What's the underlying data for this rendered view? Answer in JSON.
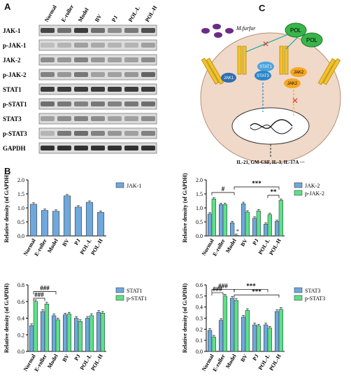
{
  "panels": {
    "a": "A",
    "b": "B",
    "c": "C"
  },
  "blot": {
    "lanes": [
      "Normal",
      "E-roller",
      "Model",
      "BV",
      "PJ",
      "POL-L",
      "POL-H"
    ],
    "rows": [
      "JAK-1",
      "p-JAK-1",
      "JAK-2",
      "p-JAK-2",
      "STAT1",
      "p-STAT1",
      "STAT3",
      "p-STAT3",
      "GAPDH"
    ]
  },
  "diagram": {
    "m_furfur": "M.furfur",
    "pol": "POL",
    "jak1": "JAK1",
    "jak2": "JAK2",
    "stat1": "STAT1",
    "stat3": "STAT3",
    "cytokines": "IL-21, GM-CSF, IL-3, IL-17A ···"
  },
  "chart_data": [
    {
      "type": "bar",
      "categories": [
        "Normal",
        "E-roller",
        "Model",
        "BV",
        "PJ",
        "POL-L",
        "POL-H"
      ],
      "ylabel": "Relative density (of GAPDH)",
      "ylim": [
        0,
        2.0
      ],
      "yticks": [
        "0.0",
        "0.5",
        "1.0",
        "1.5",
        "2.0"
      ],
      "legend_position": "right",
      "series": [
        {
          "name": "JAK-1",
          "color": "#6fa8dc",
          "values": [
            1.13,
            0.91,
            0.88,
            1.43,
            1.03,
            1.2,
            0.84
          ]
        }
      ]
    },
    {
      "type": "bar",
      "categories": [
        "Normal",
        "E-roller",
        "Model",
        "BV",
        "PJ",
        "POL-L",
        "POL-H"
      ],
      "ylabel": "Relative density (of GAPDH)",
      "ylim": [
        0,
        2.0
      ],
      "yticks": [
        "0.0",
        "0.5",
        "1.0",
        "1.5",
        "2.0"
      ],
      "legend_position": "right",
      "series": [
        {
          "name": "JAK-2",
          "color": "#6fa8dc",
          "values": [
            0.78,
            1.12,
            0.47,
            1.15,
            0.63,
            0.42,
            0.52
          ]
        },
        {
          "name": "p-JAK-2",
          "color": "#5ee08a",
          "values": [
            1.32,
            1.12,
            0.02,
            0.85,
            0.89,
            0.76,
            1.27
          ]
        }
      ],
      "annotations": [
        "#",
        "***",
        "**",
        "*"
      ]
    },
    {
      "type": "bar",
      "categories": [
        "Normal",
        "E-roller",
        "Model",
        "BV",
        "PJ",
        "POL-L",
        "POL-H"
      ],
      "ylabel": "Relative density (of GAPDH)",
      "ylim": [
        0,
        0.8
      ],
      "yticks": [
        "0.0",
        "0.2",
        "0.4",
        "0.6",
        "0.8"
      ],
      "legend_position": "right",
      "series": [
        {
          "name": "STAT1",
          "color": "#6fa8dc",
          "values": [
            0.31,
            0.48,
            0.43,
            0.44,
            0.4,
            0.4,
            0.47
          ]
        },
        {
          "name": "p-STAT1",
          "color": "#5ee08a",
          "values": [
            0.6,
            0.57,
            0.38,
            0.45,
            0.36,
            0.43,
            0.46
          ]
        }
      ],
      "annotations": [
        "###",
        "###"
      ]
    },
    {
      "type": "bar",
      "categories": [
        "Normal",
        "E-roller",
        "Model",
        "BV",
        "PJ",
        "POL-L",
        "POL-H"
      ],
      "ylabel": "Relative density (of GAPDH)",
      "ylim": [
        0,
        0.6
      ],
      "yticks": [
        "0.0",
        "0.1",
        "0.2",
        "0.3",
        "0.4",
        "0.5",
        "0.6"
      ],
      "legend_position": "right",
      "series": [
        {
          "name": "STAT3",
          "color": "#6fa8dc",
          "values": [
            0.19,
            0.28,
            0.48,
            0.31,
            0.24,
            0.24,
            0.36
          ]
        },
        {
          "name": "p-STAT3",
          "color": "#5ee08a",
          "values": [
            0.13,
            0.5,
            0.46,
            0.37,
            0.23,
            0.21,
            0.38
          ]
        }
      ],
      "annotations": [
        "###",
        "###",
        "***",
        "***"
      ]
    }
  ]
}
